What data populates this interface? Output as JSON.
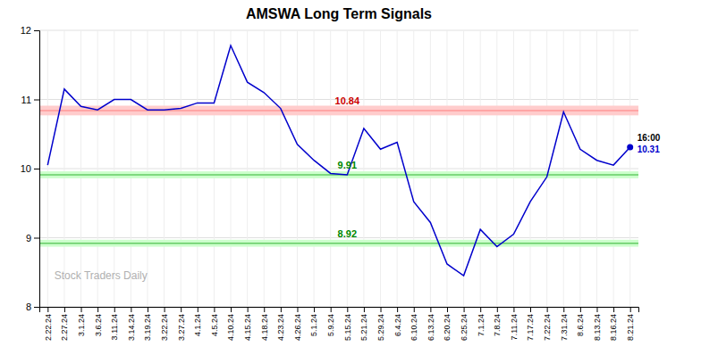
{
  "chart_data": {
    "type": "line",
    "title": "AMSWA Long Term Signals",
    "categories": [
      "2.22.24",
      "2.27.24",
      "3.1.24",
      "3.6.24",
      "3.11.24",
      "3.14.24",
      "3.19.24",
      "3.22.24",
      "3.27.24",
      "4.1.24",
      "4.5.24",
      "4.10.24",
      "4.15.24",
      "4.18.24",
      "4.23.24",
      "4.26.24",
      "5.1.24",
      "5.9.24",
      "5.15.24",
      "5.21.24",
      "5.29.24",
      "6.4.24",
      "6.10.24",
      "6.13.24",
      "6.20.24",
      "6.25.24",
      "7.1.24",
      "7.8.24",
      "7.11.24",
      "7.17.24",
      "7.22.24",
      "7.31.24",
      "8.6.24",
      "8.13.24",
      "8.16.24",
      "8.21.24"
    ],
    "values": [
      10.05,
      11.15,
      10.9,
      10.85,
      11.0,
      11.0,
      10.85,
      10.85,
      10.87,
      10.95,
      10.95,
      11.78,
      11.25,
      11.1,
      10.87,
      10.35,
      10.12,
      9.93,
      9.91,
      10.58,
      10.28,
      10.38,
      9.52,
      9.22,
      8.62,
      8.45,
      9.12,
      8.87,
      9.05,
      9.52,
      9.88,
      10.82,
      10.28,
      10.12,
      10.05,
      10.31
    ],
    "color": "#0000cc",
    "marker": "last",
    "ylim": [
      8.0,
      12.0
    ],
    "yticks": [
      8,
      9,
      10,
      11,
      12
    ],
    "grid": true,
    "reference_lines": [
      {
        "value": 10.84,
        "band": 0.07,
        "color": "#ff9999",
        "band_color": "#ffcccc",
        "label": "10.84",
        "label_color": "#cc0000"
      },
      {
        "value": 9.91,
        "band": 0.05,
        "color": "#66cc66",
        "band_color": "#ccffcc",
        "label": "9.91",
        "label_color": "#008800"
      },
      {
        "value": 8.92,
        "band": 0.05,
        "color": "#66cc66",
        "band_color": "#ccffcc",
        "label": "8.92",
        "label_color": "#008800"
      }
    ],
    "annotations": [
      {
        "text": "16:00",
        "color": "#000000"
      },
      {
        "text": "10.31",
        "color": "#0000cc"
      }
    ],
    "watermark": "Stock Traders Daily"
  }
}
